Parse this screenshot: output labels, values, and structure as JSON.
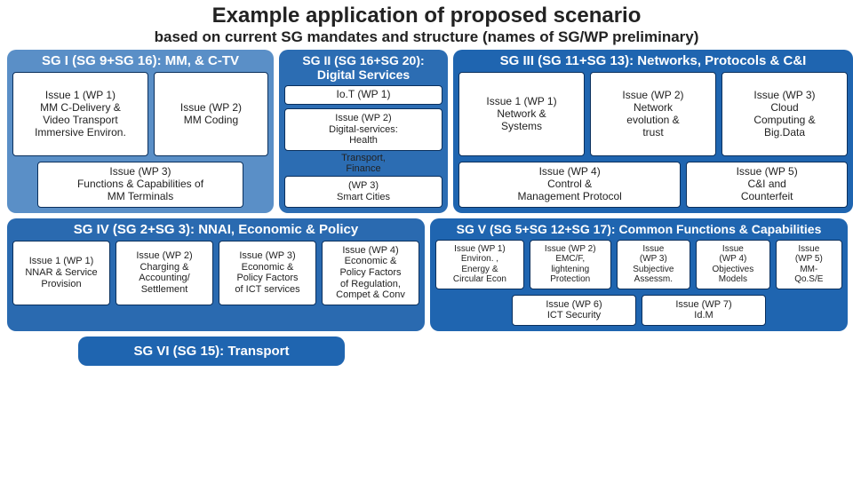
{
  "title": "Example application of proposed scenario",
  "subtitle": "based on current SG mandates and structure (names of SG/WP preliminary)",
  "colors": {
    "sg1": "#5a8fc7",
    "sg2": "#2c6db3",
    "sg3": "#1f65b0",
    "sg4": "#2a6ab0",
    "sg5": "#1f65b0",
    "sg6": "#1f65b0",
    "boxBorder": "#0a2f5c"
  },
  "sg1": {
    "header": "SG I (SG 9+SG 16): MM, & C-TV",
    "b1": "Issue 1 (WP 1)\nMM C-Delivery &\nVideo Transport\nImmersive Environ.",
    "b2": "Issue (WP 2)\nMM Coding",
    "b3": "Issue (WP 3)\nFunctions & Capabilities of\nMM Terminals"
  },
  "sg2": {
    "header": "SG II (SG 16+SG 20):\nDigital Services",
    "b1": "Io.T (WP 1)",
    "b2": "Issue (WP 2)\nDigital-services:\nHealth",
    "b3": "Transport,\nFinance",
    "b4": "(WP 3)\nSmart Cities"
  },
  "sg3": {
    "header": "SG III (SG 11+SG 13): Networks, Protocols & C&I",
    "b1": "Issue 1 (WP 1)\nNetwork &\nSystems",
    "b2": "Issue (WP 2)\nNetwork\nevolution &\ntrust",
    "b3": "Issue (WP 3)\nCloud\nComputing &\nBig.Data",
    "b4": "Issue (WP 4)\nControl &\nManagement Protocol",
    "b5": "Issue (WP 5)\nC&I and\nCounterfeit"
  },
  "sg4": {
    "header": "SG IV (SG 2+SG 3): NNAI, Economic & Policy",
    "b1": "Issue 1 (WP 1)\nNNAR & Service\nProvision",
    "b2": "Issue (WP 2)\nCharging &\nAccounting/\nSettlement",
    "b3": "Issue (WP 3)\nEconomic &\nPolicy Factors\nof ICT services",
    "b4": "Issue (WP 4)\nEconomic &\nPolicy Factors\nof Regulation,\nCompet & Conv"
  },
  "sg5": {
    "header": "SG V (SG 5+SG 12+SG 17): Common Functions & Capabilities",
    "b1": "Issue (WP 1)\nEnviron. ,\nEnergy &\nCircular Econ",
    "b2": "Issue (WP 2)\nEMC/F,\nlightening\nProtection",
    "b3": "Issue\n(WP 3)\nSubjective\nAssessm.",
    "b4": "Issue\n(WP 4)\nObjectives\nModels",
    "b5": "Issue\n(WP 5)\nMM-\nQo.S/E",
    "b6": "Issue (WP 6)\nICT Security",
    "b7": "Issue (WP 7)\nId.M"
  },
  "sg6": {
    "header": "SG VI (SG 15): Transport"
  }
}
